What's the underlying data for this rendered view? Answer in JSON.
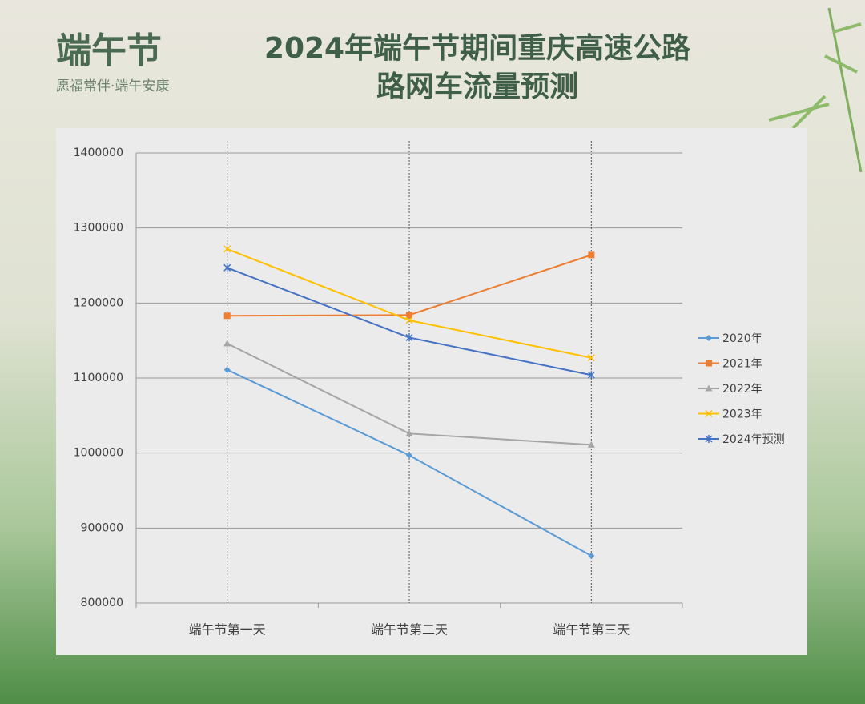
{
  "header": {
    "brand": "端午节",
    "tagline": "愿福常伴·端午安康"
  },
  "chart_data": {
    "type": "line",
    "title": [
      "2024年端午节期间重庆高速公路",
      "路网车流量预测"
    ],
    "categories": [
      "端午节第一天",
      "端午节第二天",
      "端午节第三天"
    ],
    "series": [
      {
        "name": "2020年",
        "color": "#5b9bd5",
        "marker": "diamond",
        "values": [
          1111000,
          997000,
          863000
        ]
      },
      {
        "name": "2021年",
        "color": "#ed7d31",
        "marker": "square",
        "values": [
          1183000,
          1184000,
          1264000
        ]
      },
      {
        "name": "2022年",
        "color": "#a5a5a5",
        "marker": "triangle",
        "values": [
          1146000,
          1026000,
          1011000
        ]
      },
      {
        "name": "2023年",
        "color": "#ffc000",
        "marker": "x",
        "values": [
          1272000,
          1177000,
          1127000
        ]
      },
      {
        "name": "2024年预测",
        "color": "#4472c4",
        "marker": "star",
        "values": [
          1247000,
          1154000,
          1104000
        ]
      }
    ],
    "ylim": [
      800000,
      1400000
    ],
    "yticks": [
      800000,
      900000,
      1000000,
      1100000,
      1200000,
      1300000,
      1400000
    ],
    "grid": true,
    "legend": "right"
  }
}
